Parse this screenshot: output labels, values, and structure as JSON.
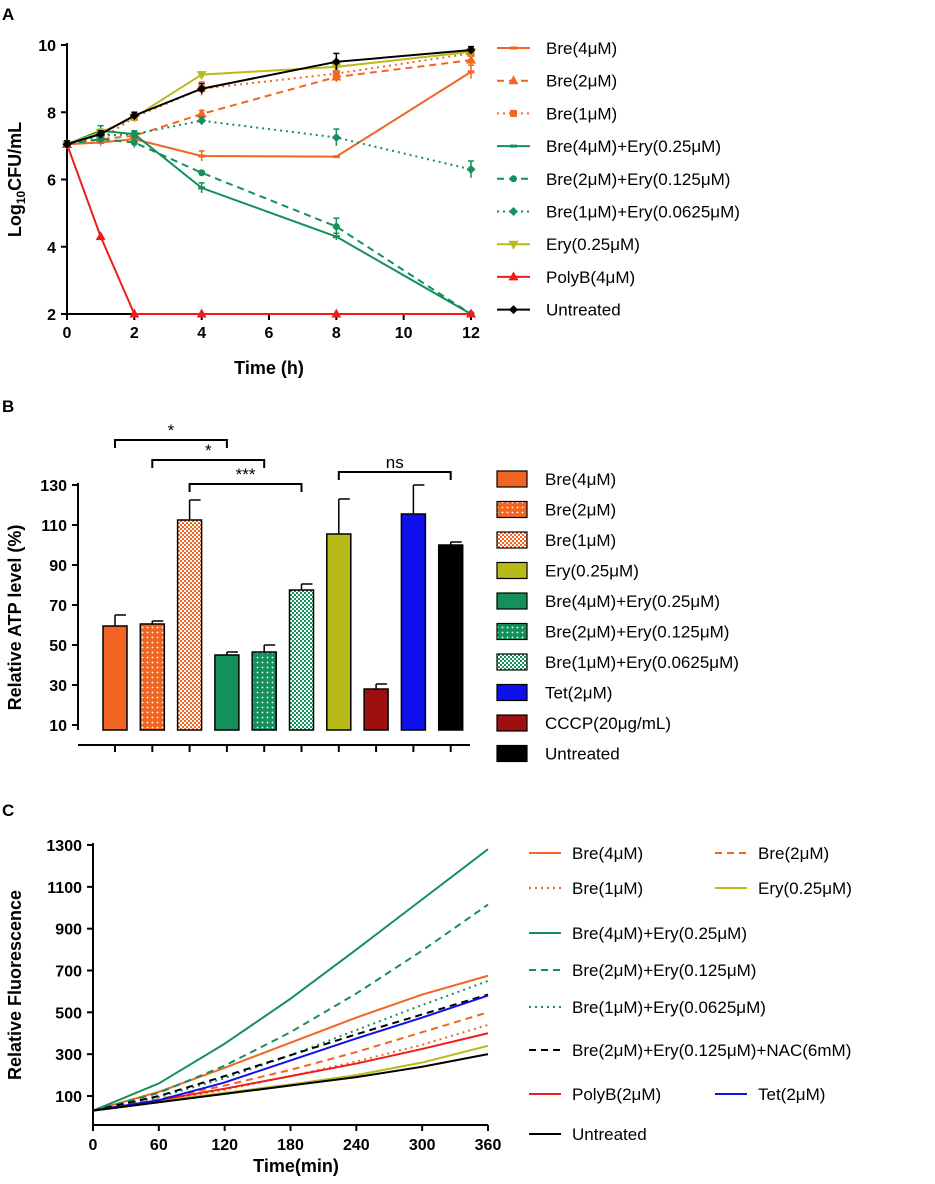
{
  "colors": {
    "bre_orange": "#f26522",
    "green": "#14915a",
    "ery_olive": "#b8ba18",
    "polyb_red": "#ee1c1c",
    "black": "#000000",
    "tet_blue": "#1010ee",
    "cccp_darkred": "#9e1010"
  },
  "chart_data": [
    {
      "panel": "A",
      "type": "line",
      "xlabel": "Time (h)",
      "ylabel_main": "Log",
      "ylabel_sub": "10",
      "ylabel_rest": "CFU/mL",
      "xlim": [
        0,
        12
      ],
      "ylim": [
        2,
        10
      ],
      "xticks": [
        0,
        2,
        4,
        6,
        8,
        10,
        12
      ],
      "yticks": [
        2,
        4,
        6,
        8,
        10
      ],
      "series": [
        {
          "name": "Bre(4μM)",
          "color": "#f26522",
          "dash": "solid",
          "marker": "bar",
          "x": [
            0,
            1,
            2,
            4,
            8,
            12
          ],
          "y": [
            7.05,
            7.1,
            7.2,
            6.7,
            6.68,
            9.2
          ],
          "err": [
            0.1,
            0.1,
            0.1,
            0.15,
            0.0,
            0.2
          ]
        },
        {
          "name": "Bre(2μM)",
          "color": "#f26522",
          "dash": "dashed",
          "marker": "tri",
          "x": [
            0,
            1,
            2,
            4,
            8,
            12
          ],
          "y": [
            7.05,
            7.2,
            7.3,
            7.95,
            9.05,
            9.55
          ],
          "err": [
            0.1,
            0.1,
            0.1,
            0.1,
            0.15,
            0.15
          ]
        },
        {
          "name": "Bre(1μM)",
          "color": "#f26522",
          "dash": "dotted",
          "marker": "square",
          "x": [
            0,
            1,
            2,
            4,
            8,
            12
          ],
          "y": [
            7.05,
            7.2,
            7.85,
            8.7,
            9.15,
            9.75
          ],
          "err": [
            0.1,
            0.1,
            0.1,
            0.2,
            0.2,
            0.1
          ]
        },
        {
          "name": "Bre(4μM)+Ery(0.25μM)",
          "color": "#14915a",
          "dash": "solid",
          "marker": "bar",
          "x": [
            0,
            1,
            2,
            4,
            8,
            12
          ],
          "y": [
            7.05,
            7.45,
            7.35,
            5.75,
            4.3,
            2.0
          ],
          "err": [
            0.1,
            0.15,
            0.1,
            0.15,
            0.1,
            0.0
          ]
        },
        {
          "name": "Bre(2μM)+Ery(0.125μM)",
          "color": "#14915a",
          "dash": "dashed",
          "marker": "circle",
          "x": [
            0,
            1,
            2,
            4,
            8,
            12
          ],
          "y": [
            7.05,
            7.2,
            7.1,
            6.2,
            4.6,
            2.0
          ],
          "err": [
            0.1,
            0.1,
            0.15,
            0.05,
            0.25,
            0.0
          ]
        },
        {
          "name": "Bre(1μM)+Ery(0.0625μM)",
          "color": "#14915a",
          "dash": "dotted",
          "marker": "diamond",
          "x": [
            0,
            1,
            2,
            4,
            8,
            12
          ],
          "y": [
            7.05,
            7.3,
            7.35,
            7.75,
            7.25,
            6.3
          ],
          "err": [
            0.1,
            0.1,
            0.1,
            0.1,
            0.25,
            0.25
          ]
        },
        {
          "name": "Ery(0.25μM)",
          "color": "#b8ba18",
          "dash": "solid",
          "marker": "tri-down",
          "x": [
            0,
            1,
            2,
            4,
            8,
            12
          ],
          "y": [
            7.05,
            7.4,
            7.85,
            9.12,
            9.35,
            9.8
          ],
          "err": [
            0.1,
            0.1,
            0.1,
            0.05,
            0.1,
            0.1
          ]
        },
        {
          "name": "PolyB(4μM)",
          "color": "#ee1c1c",
          "dash": "solid",
          "marker": "tri",
          "x": [
            0,
            1,
            2,
            4,
            8,
            12
          ],
          "y": [
            7.05,
            4.3,
            2.0,
            2.0,
            2.0,
            2.0
          ],
          "err": [
            0,
            0,
            0,
            0,
            0,
            0
          ]
        },
        {
          "name": "Untreated",
          "color": "#000000",
          "dash": "solid",
          "marker": "diamond",
          "x": [
            0,
            1,
            2,
            4,
            8,
            12
          ],
          "y": [
            7.05,
            7.35,
            7.9,
            8.7,
            9.5,
            9.85
          ],
          "err": [
            0.1,
            0.1,
            0.1,
            0.15,
            0.25,
            0.1
          ]
        }
      ]
    },
    {
      "panel": "B",
      "type": "bar",
      "ylabel": "Relative ATP level (%)",
      "ylim": [
        0,
        130
      ],
      "yticks": [
        10,
        30,
        50,
        70,
        90,
        110,
        130
      ],
      "bars": [
        {
          "name": "Bre(4μM)",
          "value": 59.5,
          "err": 5.5,
          "color": "#f26522",
          "pattern": "solid"
        },
        {
          "name": "Bre(2μM)",
          "value": 60.5,
          "err": 1.5,
          "color": "#f26522",
          "pattern": "dots"
        },
        {
          "name": "Bre(1μM)",
          "value": 112.5,
          "err": 10,
          "color": "#f26522",
          "pattern": "check"
        },
        {
          "name": "Bre(4μM)+Ery(0.25μM)",
          "value": 45,
          "err": 1.5,
          "color": "#14915a",
          "pattern": "solid"
        },
        {
          "name": "Bre(2μM)+Ery(0.125μM)",
          "value": 46.5,
          "err": 3.5,
          "color": "#14915a",
          "pattern": "dots"
        },
        {
          "name": "Bre(1μM)+Ery(0.0625μM)",
          "value": 77.5,
          "err": 3,
          "color": "#14915a",
          "pattern": "check"
        },
        {
          "name": "Ery(0.25μM)",
          "value": 105.5,
          "err": 17.5,
          "color": "#b8ba18",
          "pattern": "solid"
        },
        {
          "name": "CCCP(20μg/mL)",
          "value": 28,
          "err": 2.5,
          "color": "#9e1010",
          "pattern": "solid"
        },
        {
          "name": "Tet(2μM)",
          "value": 115.5,
          "err": 14.5,
          "color": "#1010ee",
          "pattern": "solid"
        },
        {
          "name": "Untreated",
          "value": 100,
          "err": 1.5,
          "color": "#000000",
          "pattern": "solid"
        }
      ],
      "legend_order": [
        "Bre(4μM)",
        "Bre(2μM)",
        "Bre(1μM)",
        "Ery(0.25μM)",
        "Bre(4μM)+Ery(0.25μM)",
        "Bre(2μM)+Ery(0.125μM)",
        "Bre(1μM)+Ery(0.0625μM)",
        "Tet(2μM)",
        "CCCP(20μg/mL)",
        "Untreated"
      ],
      "significance": [
        {
          "from": 0,
          "to": 3,
          "label": "*"
        },
        {
          "from": 1,
          "to": 4,
          "label": "*"
        },
        {
          "from": 2,
          "to": 5,
          "label": "***"
        },
        {
          "from": 6,
          "to": 9,
          "label": "ns"
        }
      ]
    },
    {
      "panel": "C",
      "type": "line",
      "xlabel": "Time(min)",
      "ylabel": "Relative Fluorescence",
      "xlim": [
        0,
        360
      ],
      "ylim": [
        0,
        1300
      ],
      "xticks": [
        0,
        60,
        120,
        180,
        240,
        300,
        360
      ],
      "yticks": [
        100,
        300,
        500,
        700,
        900,
        1100,
        1300
      ],
      "series": [
        {
          "name": "Bre(4μM)",
          "color": "#f26522",
          "dash": "solid",
          "x": [
            0,
            60,
            120,
            180,
            240,
            300,
            360
          ],
          "y": [
            30,
            120,
            235,
            355,
            475,
            585,
            675
          ]
        },
        {
          "name": "Bre(2μM)",
          "color": "#f26522",
          "dash": "dashed",
          "x": [
            0,
            60,
            120,
            180,
            240,
            300,
            360
          ],
          "y": [
            30,
            85,
            150,
            225,
            310,
            405,
            500
          ]
        },
        {
          "name": "Bre(1μM)",
          "color": "#f26522",
          "dash": "dotted",
          "x": [
            0,
            60,
            120,
            180,
            240,
            300,
            360
          ],
          "y": [
            30,
            75,
            130,
            195,
            265,
            345,
            440
          ]
        },
        {
          "name": "Ery(0.25μM)",
          "color": "#b8ba18",
          "dash": "solid",
          "x": [
            0,
            60,
            120,
            180,
            240,
            300,
            360
          ],
          "y": [
            30,
            75,
            115,
            155,
            200,
            260,
            340
          ]
        },
        {
          "name": "Bre(4μM)+Ery(0.25μM)",
          "color": "#14915a",
          "dash": "solid",
          "x": [
            0,
            60,
            120,
            180,
            240,
            300,
            360
          ],
          "y": [
            30,
            160,
            350,
            565,
            800,
            1040,
            1280
          ]
        },
        {
          "name": "Bre(2μM)+Ery(0.125μM)",
          "color": "#14915a",
          "dash": "dashed",
          "x": [
            0,
            60,
            120,
            180,
            240,
            300,
            360
          ],
          "y": [
            30,
            115,
            245,
            405,
            590,
            795,
            1015
          ]
        },
        {
          "name": "Bre(1μM)+Ery(0.0625μM)",
          "color": "#14915a",
          "dash": "dotted",
          "x": [
            0,
            60,
            120,
            180,
            240,
            300,
            360
          ],
          "y": [
            30,
            95,
            185,
            295,
            415,
            535,
            650
          ]
        },
        {
          "name": "Bre(2μM)+Ery(0.125μM)+NAC(6mM)",
          "color": "#000000",
          "dash": "dashed",
          "x": [
            0,
            60,
            120,
            180,
            240,
            300,
            360
          ],
          "y": [
            30,
            100,
            195,
            295,
            395,
            490,
            585
          ]
        },
        {
          "name": "PolyB(2μM)",
          "color": "#ee1c1c",
          "dash": "solid",
          "x": [
            0,
            60,
            120,
            180,
            240,
            300,
            360
          ],
          "y": [
            30,
            80,
            135,
            195,
            255,
            325,
            400
          ]
        },
        {
          "name": "Tet(2μM)",
          "color": "#1010ee",
          "dash": "solid",
          "x": [
            0,
            60,
            120,
            180,
            240,
            300,
            360
          ],
          "y": [
            30,
            80,
            165,
            270,
            375,
            475,
            580
          ]
        },
        {
          "name": "Untreated",
          "color": "#000000",
          "dash": "solid",
          "x": [
            0,
            60,
            120,
            180,
            240,
            300,
            360
          ],
          "y": [
            30,
            70,
            110,
            150,
            190,
            240,
            300
          ]
        }
      ]
    }
  ]
}
